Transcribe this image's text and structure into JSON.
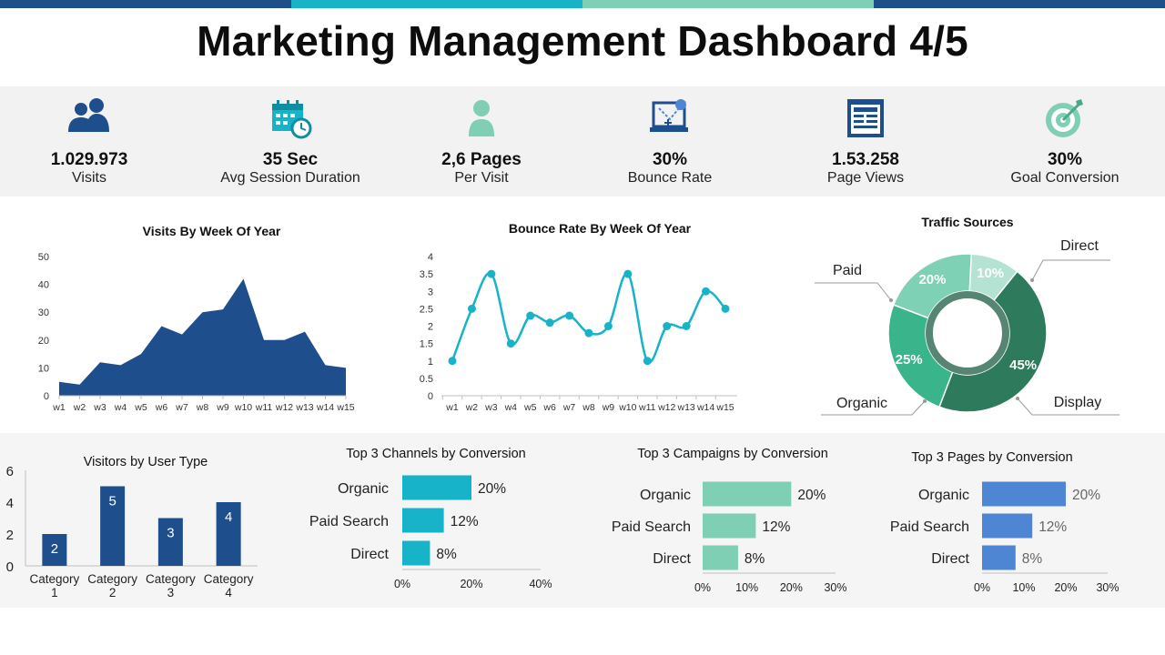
{
  "title": "Marketing Management Dashboard 4/5",
  "colors": {
    "navy": "#1f4e8c",
    "teal": "#17b3c8",
    "mint": "#7ecfb4",
    "blue": "#4f86d4"
  },
  "kpis": [
    {
      "icon": "users-icon",
      "value": "1.029.973",
      "label": "Visits"
    },
    {
      "icon": "calendar-clock-icon",
      "value": "35 Sec",
      "label": "Avg Session Duration"
    },
    {
      "icon": "person-icon",
      "value": "2,6 Pages",
      "label": "Per Visit"
    },
    {
      "icon": "laptop-cursor-icon",
      "value": "30%",
      "label": "Bounce Rate"
    },
    {
      "icon": "web-page-icon",
      "value": "1.53.258",
      "label": "Page Views"
    },
    {
      "icon": "target-icon",
      "value": "30%",
      "label": "Goal Conversion"
    }
  ],
  "chart_data": [
    {
      "type": "area",
      "title": "Visits By Week Of Year",
      "categories": [
        "w1",
        "w2",
        "w3",
        "w4",
        "w5",
        "w6",
        "w7",
        "w8",
        "w9",
        "w10",
        "w11",
        "w12",
        "w13",
        "w14",
        "w15"
      ],
      "values": [
        5,
        4,
        12,
        11,
        15,
        25,
        22,
        30,
        31,
        42,
        20,
        20,
        23,
        11,
        10
      ],
      "ylim": [
        0,
        50
      ],
      "yticks": [
        "0",
        "10",
        "20",
        "30",
        "40",
        "50"
      ],
      "color": "#1f4e8c"
    },
    {
      "type": "line",
      "title": "Bounce Rate By Week Of Year",
      "categories": [
        "w1",
        "w2",
        "w3",
        "w4",
        "w5",
        "w6",
        "w7",
        "w8",
        "w9",
        "w10",
        "w11",
        "w12",
        "w13",
        "w14",
        "w15"
      ],
      "values": [
        1,
        2.5,
        3.5,
        1.5,
        2.3,
        2.1,
        2.3,
        1.8,
        2.0,
        3.5,
        1.0,
        2.0,
        2.0,
        3.0,
        2.5
      ],
      "ylim": [
        0,
        4
      ],
      "yticks": [
        "0",
        "0.5",
        "1",
        "1.5",
        "2",
        "2.5",
        "3",
        "3.5",
        "4"
      ],
      "color": "#17b3c8"
    },
    {
      "type": "pie",
      "title": "Traffic Sources",
      "slices": [
        {
          "name": "Direct",
          "value": 45,
          "label": "45%",
          "color": "#2e7a5c"
        },
        {
          "name": "Display",
          "value": 25,
          "label": "25%",
          "color": "#3ab48a"
        },
        {
          "name": "Organic",
          "value": 20,
          "label": "20%",
          "color": "#7fd1b5"
        },
        {
          "name": "Paid",
          "value": 10,
          "label": "10%",
          "color": "#b5e3d3"
        }
      ]
    },
    {
      "type": "bar",
      "title": "Visitors by User Type",
      "categories": [
        [
          "Category",
          "1"
        ],
        [
          "Category",
          "2"
        ],
        [
          "Category",
          "3"
        ],
        [
          "Category",
          "4"
        ]
      ],
      "values": [
        2,
        5,
        3,
        4
      ],
      "labels": [
        "2",
        "5",
        "3",
        "4"
      ],
      "ylim": [
        0,
        6
      ],
      "yticks": [
        "0",
        "2",
        "4",
        "6"
      ],
      "color": "#1f4e8c"
    },
    {
      "type": "bar",
      "orientation": "horizontal",
      "title": "Top 3 Channels by Conversion",
      "categories": [
        "Organic",
        "Paid Search",
        "Direct"
      ],
      "values": [
        20,
        12,
        8
      ],
      "labels": [
        "20%",
        "12%",
        "8%"
      ],
      "xlim": [
        0,
        40
      ],
      "xticks": [
        "0%",
        "20%",
        "40%"
      ],
      "color": "#17b3c8"
    },
    {
      "type": "bar",
      "orientation": "horizontal",
      "title": "Top 3 Campaigns by Conversion",
      "categories": [
        "Organic",
        "Paid Search",
        "Direct"
      ],
      "values": [
        20,
        12,
        8
      ],
      "labels": [
        "20%",
        "12%",
        "8%"
      ],
      "xlim": [
        0,
        30
      ],
      "xticks": [
        "0%",
        "10%",
        "20%",
        "30%"
      ],
      "color": "#7ecfb4"
    },
    {
      "type": "bar",
      "orientation": "horizontal",
      "title": "Top 3 Pages by Conversion",
      "categories": [
        "Organic",
        "Paid Search",
        "Direct"
      ],
      "values": [
        20,
        12,
        8
      ],
      "labels": [
        "20%",
        "12%",
        "8%"
      ],
      "xlim": [
        0,
        30
      ],
      "xticks": [
        "0%",
        "10%",
        "20%",
        "30%"
      ],
      "color": "#4f86d4"
    }
  ]
}
